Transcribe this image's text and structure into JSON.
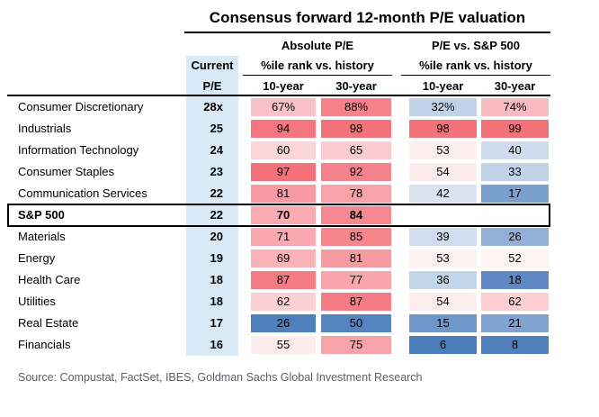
{
  "title": "Consensus forward 12-month P/E valuation",
  "header": {
    "group1": "Absolute P/E",
    "group2": "P/E vs. S&P 500",
    "pct_rank_label_1": "%ile rank vs. history",
    "pct_rank_label_2": "%ile rank vs. history",
    "current_line1": "Current",
    "current_line2": "P/E",
    "abs_10y": "10-year",
    "abs_30y": "30-year",
    "rel_10y": "10-year",
    "rel_30y": "30-year"
  },
  "colors": {
    "current_pe_column_bg": "#D9EAF7",
    "red_max": "#F4717A",
    "blue_max": "#4C7DBB",
    "neutral_mid": "#FFFFFF",
    "highlight_border": "#000000",
    "source_text": "#5C6166"
  },
  "table": {
    "rows": [
      {
        "sector": "Consumer Discretionary",
        "emphasis": false,
        "pe": "28x",
        "cells": [
          {
            "v": "67%",
            "bg": "#F9C2C6"
          },
          {
            "v": "88%",
            "bg": "#F6838B"
          },
          {
            "v": "32%",
            "bg": "#C0D2E7"
          },
          {
            "v": "74%",
            "bg": "#F9BAC0"
          }
        ]
      },
      {
        "sector": "Industrials",
        "emphasis": false,
        "pe": "25",
        "cells": [
          {
            "v": "94",
            "bg": "#F5767E"
          },
          {
            "v": "98",
            "bg": "#F4737B"
          },
          {
            "v": "98",
            "bg": "#F4737B"
          },
          {
            "v": "99",
            "bg": "#F4717A"
          }
        ]
      },
      {
        "sector": "Information Technology",
        "emphasis": false,
        "pe": "24",
        "cells": [
          {
            "v": "60",
            "bg": "#FBD6D9"
          },
          {
            "v": "65",
            "bg": "#FACBCF"
          },
          {
            "v": "53",
            "bg": "#FEF0F1"
          },
          {
            "v": "40",
            "bg": "#CEDCEE"
          }
        ]
      },
      {
        "sector": "Consumer Staples",
        "emphasis": false,
        "pe": "23",
        "cells": [
          {
            "v": "97",
            "bg": "#F4717A"
          },
          {
            "v": "92",
            "bg": "#F5828B"
          },
          {
            "v": "54",
            "bg": "#FDECED"
          },
          {
            "v": "33",
            "bg": "#C0D3E8"
          }
        ]
      },
      {
        "sector": "Communication Services",
        "emphasis": false,
        "pe": "22",
        "cells": [
          {
            "v": "81",
            "bg": "#F79AA1"
          },
          {
            "v": "78",
            "bg": "#F8A3AA"
          },
          {
            "v": "42",
            "bg": "#DAE4F1"
          },
          {
            "v": "17",
            "bg": "#7BA0CE"
          }
        ]
      },
      {
        "sector": "S&P 500",
        "emphasis": true,
        "pe": "22",
        "cells": [
          {
            "v": "70",
            "bg": "#F9ABB1"
          },
          {
            "v": "84",
            "bg": "#F68891"
          },
          {
            "v": "",
            "bg": ""
          },
          {
            "v": "",
            "bg": ""
          }
        ]
      },
      {
        "sector": "Materials",
        "emphasis": false,
        "pe": "20",
        "cells": [
          {
            "v": "71",
            "bg": "#F9A9AF"
          },
          {
            "v": "85",
            "bg": "#F6858E"
          },
          {
            "v": "39",
            "bg": "#CFDDEE"
          },
          {
            "v": "26",
            "bg": "#92AFD6"
          }
        ]
      },
      {
        "sector": "Energy",
        "emphasis": false,
        "pe": "19",
        "cells": [
          {
            "v": "69",
            "bg": "#FAB1B7"
          },
          {
            "v": "81",
            "bg": "#F79BA2"
          },
          {
            "v": "53",
            "bg": "#FEF1F2"
          },
          {
            "v": "52",
            "bg": "#FEF4F4"
          }
        ]
      },
      {
        "sector": "Health Care",
        "emphasis": false,
        "pe": "18",
        "cells": [
          {
            "v": "87",
            "bg": "#F57B84"
          },
          {
            "v": "77",
            "bg": "#F8A6AC"
          },
          {
            "v": "36",
            "bg": "#C3D5E9"
          },
          {
            "v": "18",
            "bg": "#6089C4"
          }
        ]
      },
      {
        "sector": "Utilities",
        "emphasis": false,
        "pe": "18",
        "cells": [
          {
            "v": "62",
            "bg": "#FAD0D4"
          },
          {
            "v": "87",
            "bg": "#F57B84"
          },
          {
            "v": "54",
            "bg": "#FDEDEE"
          },
          {
            "v": "62",
            "bg": "#FACED2"
          }
        ]
      },
      {
        "sector": "Real Estate",
        "emphasis": false,
        "pe": "17",
        "cells": [
          {
            "v": "26",
            "bg": "#4F80BD"
          },
          {
            "v": "50",
            "bg": "#5584C0"
          },
          {
            "v": "15",
            "bg": "#7097CA"
          },
          {
            "v": "21",
            "bg": "#80A3D1"
          }
        ]
      },
      {
        "sector": "Financials",
        "emphasis": false,
        "pe": "16",
        "cells": [
          {
            "v": "55",
            "bg": "#FDECEE"
          },
          {
            "v": "75",
            "bg": "#F8A2A9"
          },
          {
            "v": "6",
            "bg": "#4C7DBB"
          },
          {
            "v": "8",
            "bg": "#5080BE"
          }
        ]
      }
    ]
  },
  "source": "Source: Compustat, FactSet, IBES, Goldman Sachs Global Investment Research",
  "chart_data": {
    "type": "heatmap",
    "title": "Consensus forward 12-month P/E valuation",
    "columns": [
      "Current P/E",
      "Absolute P/E %ile rank vs. history 10-year",
      "Absolute P/E %ile rank vs. history 30-year",
      "P/E vs. S&P 500 %ile rank vs. history 10-year",
      "P/E vs. S&P 500 %ile rank vs. history 30-year"
    ],
    "row_labels": [
      "Consumer Discretionary",
      "Industrials",
      "Information Technology",
      "Consumer Staples",
      "Communication Services",
      "S&P 500",
      "Materials",
      "Energy",
      "Health Care",
      "Utilities",
      "Real Estate",
      "Financials"
    ],
    "values": [
      [
        28,
        67,
        88,
        32,
        74
      ],
      [
        25,
        94,
        98,
        98,
        99
      ],
      [
        24,
        60,
        65,
        53,
        40
      ],
      [
        23,
        97,
        92,
        54,
        33
      ],
      [
        22,
        81,
        78,
        42,
        17
      ],
      [
        22,
        70,
        84,
        null,
        null
      ],
      [
        20,
        71,
        85,
        39,
        26
      ],
      [
        19,
        69,
        81,
        53,
        52
      ],
      [
        18,
        87,
        77,
        36,
        18
      ],
      [
        18,
        62,
        87,
        54,
        62
      ],
      [
        17,
        26,
        50,
        15,
        21
      ],
      [
        16,
        55,
        75,
        6,
        8
      ]
    ],
    "color_scale": "blue (low percentile) to white (mid) to red (high percentile)",
    "legend_position": "none",
    "notes": "S&P 500 row is outlined in black; relative-to-S&P cells are blank for S&P 500 itself"
  }
}
